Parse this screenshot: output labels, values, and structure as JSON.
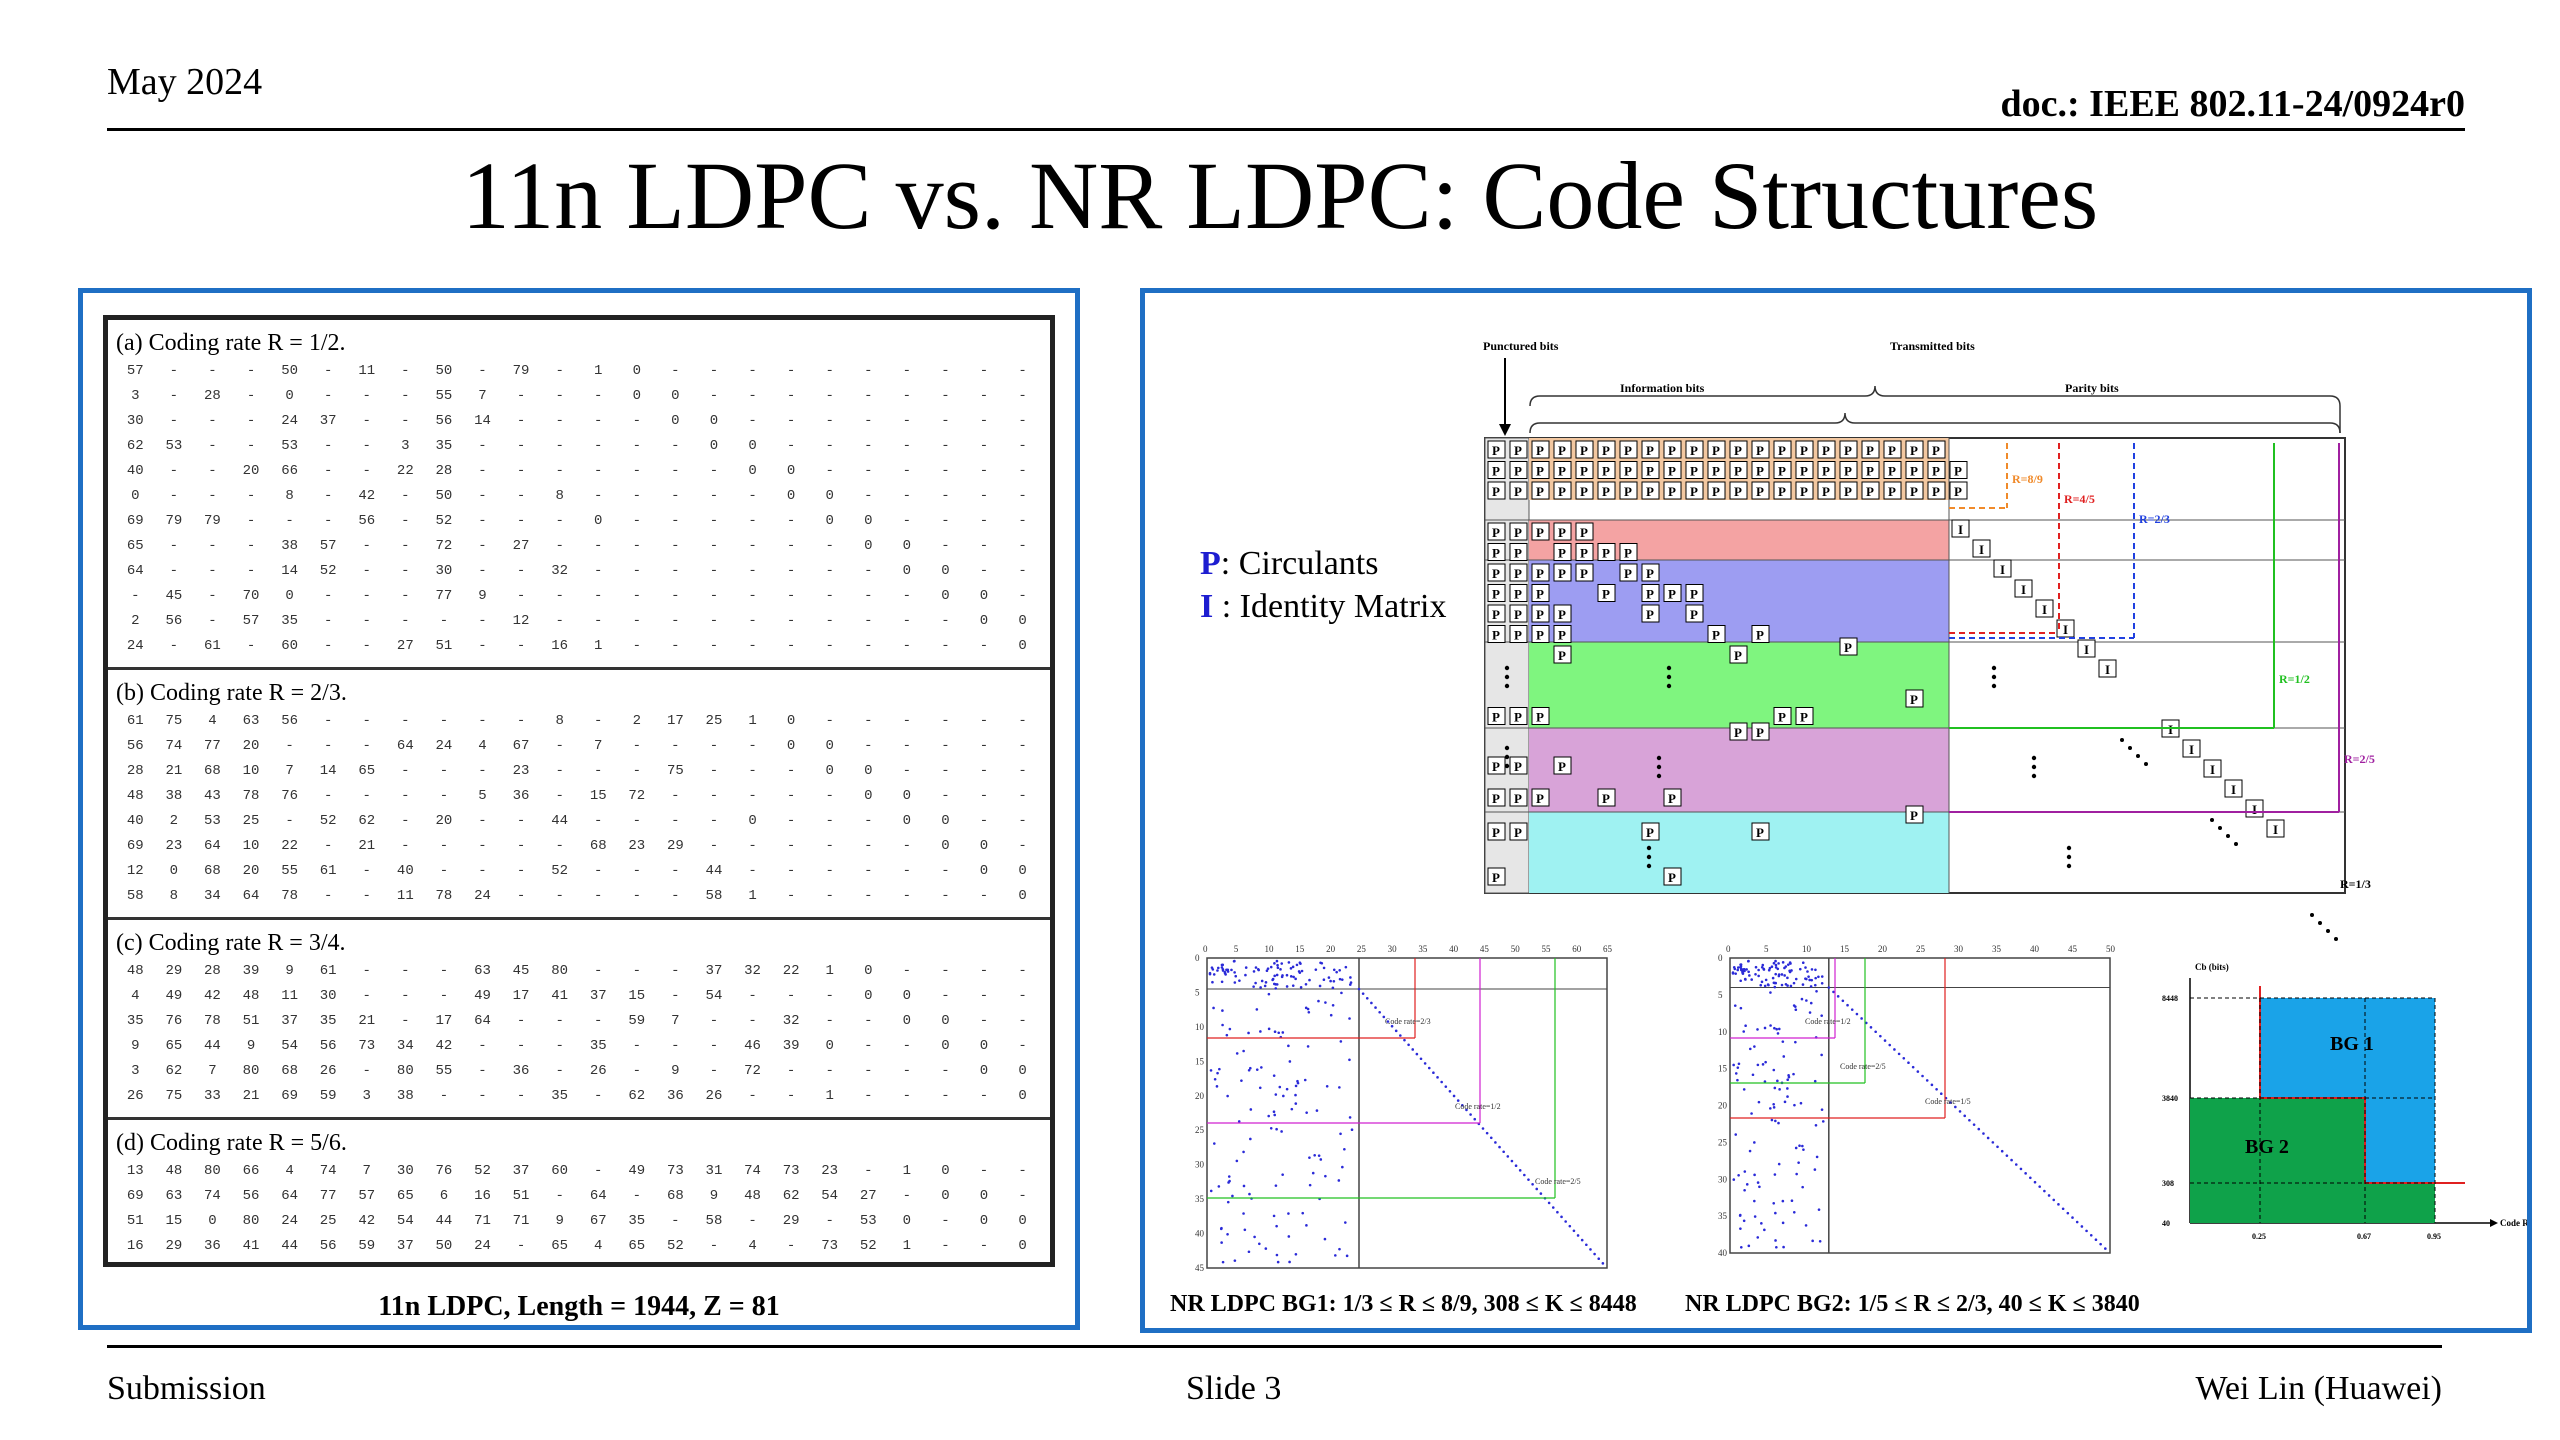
{
  "header": {
    "date": "May 2024",
    "doc_id": "doc.: IEEE 802.11-24/0924r0",
    "title": "11n LDPC vs. NR LDPC: Code Structures"
  },
  "left": {
    "caption": "11n LDPC, Length = 1944, Z = 81",
    "sections": [
      {
        "title": "(a) Coding rate R = 1/2.",
        "rows": [
          "57 - - - 50 - 11 - 50 - 79 - 1 0 - - - - - - - - - -",
          "3 - 28 - 0 - - - 55 7 - - - 0 0 - - - - - - - - -",
          "30 - - - 24 37 - - 56 14 - - - - 0 0 - - - - - - - -",
          "62 53 - - 53 - - 3 35 - - - - - - 0 0 - - - - - - -",
          "40 - - 20 66 - - 22 28 - - - - - - - 0 0 - - - - - -",
          "0 - - - 8 - 42 - 50 - - 8 - - - - - 0 0 - - - - -",
          "69 79 79 - - - 56 - 52 - - - 0 - - - - - 0 0 - - - -",
          "65 - - - 38 57 - - 72 - 27 - - - - - - - - 0 0 - - -",
          "64 - - - 14 52 - - 30 - - 32 - - - - - - - - 0 0 - -",
          "- 45 - 70 0 - - - 77 9 - - - - - - - - - - - 0 0 -",
          "2 56 - 57 35 - - - - - 12 - - - - - - - - - - - 0 0",
          "24 - 61 - 60 - - 27 51 - - 16 1 - - - - - - - - - - 0"
        ]
      },
      {
        "title": "(b) Coding rate R = 2/3.",
        "rows": [
          "61 75 4 63 56 - - - - - - 8 - 2 17 25 1 0 - - - - - -",
          "56 74 77 20 - - - 64 24 4 67 - 7 - - - - 0 0 - - - - -",
          "28 21 68 10 7 14 65 - - - 23 - - - 75 - - - 0 0 - - - -",
          "48 38 43 78 76 - - - - 5 36 - 15 72 - - - - - 0 0 - - -",
          "40 2 53 25 - 52 62 - 20 - - 44 - - - - 0 - - - 0 0 - -",
          "69 23 64 10 22 - 21 - - - - - 68 23 29 - - - - - - 0 0 -",
          "12 0 68 20 55 61 - 40 - - - 52 - - - 44 - - - - - - 0 0",
          "58 8 34 64 78 - - 11 78 24 - - - - - 58 1 - - - - - - 0"
        ]
      },
      {
        "title": "(c) Coding rate R = 3/4.",
        "rows": [
          "48 29 28 39 9 61 - - - 63 45 80 - - - 37 32 22 1 0 - - - -",
          "4 49 42 48 11 30 - - - 49 17 41 37 15 - 54 - - - 0 0 - - -",
          "35 76 78 51 37 35 21 - 17 64 - - - 59 7 - - 32 - - 0 0 - -",
          "9 65 44 9 54 56 73 34 42 - - - 35 - - - 46 39 0 - - 0 0 -",
          "3 62 7 80 68 26 - 80 55 - 36 - 26 - 9 - 72 - - - - - 0 0",
          "26 75 33 21 69 59 3 38 - - - 35 - 62 36 26 - - 1 - - - - 0"
        ]
      },
      {
        "title": "(d) Coding rate R = 5/6.",
        "rows": [
          "13 48 80 66 4 74 7 30 76 52 37 60 - 49 73 31 74 73 23 - 1 0 - -",
          "69 63 74 56 64 77 57 65 6 16 51 - 64 - 68 9 48 62 54 27 - 0 0 -",
          "51 15 0 80 24 25 42 54 44 71 71 9 67 35 - 58 - 29 - 53 0 - 0 0",
          "16 29 36 41 44 56 59 37 50 24 - 65 4 65 52 - 4 - 73 52 1 - - 0"
        ]
      }
    ]
  },
  "right": {
    "legend_p": "P: Circulants",
    "legend_i": "I : Identity Matrix",
    "labels": {
      "punctured": "Punctured bits",
      "transmitted": "Transmitted bits",
      "information": "Information bits",
      "parity": "Parity bits",
      "r89": "R=8/9",
      "r45": "R=4/5",
      "r23": "R=2/3",
      "r12": "R=1/2",
      "r25": "R=2/5",
      "r13": "R=1/3"
    },
    "bg1_caption": "NR LDPC BG1: 1/3 ≤ R ≤ 8/9, 308 ≤ K ≤ 8448",
    "bg2_caption": "NR LDPC BG2: 1/5 ≤ R ≤ 2/3, 40 ≤ K ≤ 3840",
    "bg1_annotations": [
      "Code rate=2/3",
      "Code rate=1/2",
      "Code rate=2/5"
    ],
    "bg2_annotations": [
      "Code rate=1/2",
      "Code rate=2/5",
      "Code rate=1/5"
    ],
    "region": {
      "ylabel": "Cb (bits)",
      "xlabel": "Code Rate",
      "yticks": [
        "8448",
        "3840",
        "308",
        "40"
      ],
      "xticks": [
        "0.25",
        "0.67",
        "0.95"
      ],
      "bg1": "BG 1",
      "bg2": "BG 2"
    },
    "colors": {
      "orange": "#f2c7a0",
      "red": "#f4a3a3",
      "blue": "#9d9df2",
      "green": "#7ff57f",
      "purple": "#d8a3d8",
      "cyan": "#9ff2f2",
      "bg1": "#1aa3e8",
      "bg2": "#0fa24a"
    }
  },
  "footer": {
    "left": "Submission",
    "mid": "Slide 3",
    "right": "Wei Lin (Huawei)"
  }
}
